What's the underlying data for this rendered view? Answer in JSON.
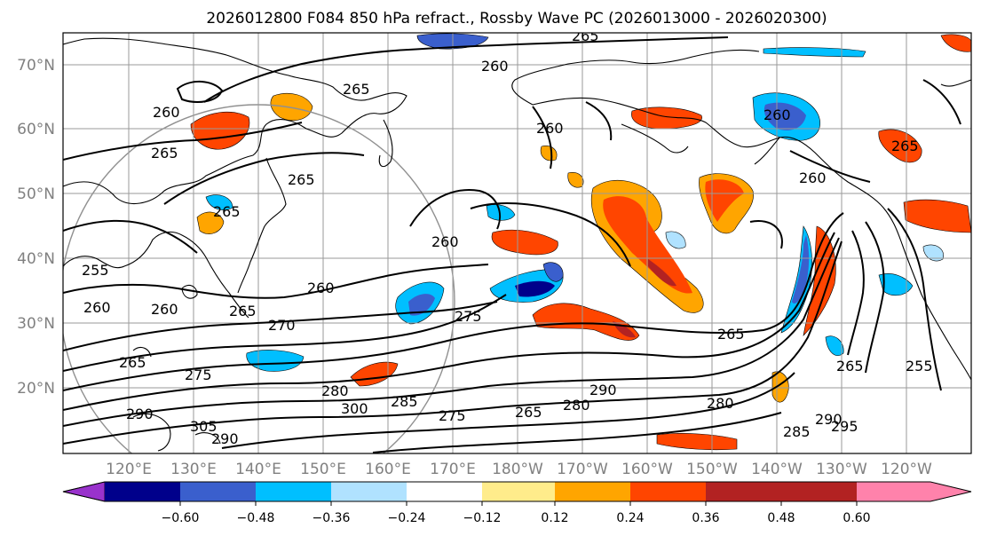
{
  "title": "2026012800 F084 850 hPa refract., Rossby Wave PC (2026013000 - 2026020300)",
  "lat_labels": [
    "70°N",
    "60°N",
    "50°N",
    "40°N",
    "30°N",
    "20°N"
  ],
  "lon_labels": [
    "120°E",
    "130°E",
    "140°E",
    "150°E",
    "160°E",
    "170°E",
    "180°W",
    "170°W",
    "160°W",
    "150°W",
    "140°W",
    "130°W",
    "120°W"
  ],
  "colorbar": {
    "colors": [
      "#9932CC",
      "#00008B",
      "#3A5FCD",
      "#00BFFF",
      "#B0E2FF",
      "#FFFFFF",
      "#FFEC8B",
      "#FFA500",
      "#FF4500",
      "#B22222",
      "#FF82AB"
    ],
    "tick_labels": [
      "−0.60",
      "−0.48",
      "−0.36",
      "−0.24",
      "−0.12",
      "0.12",
      "0.24",
      "0.36",
      "0.48",
      "0.60"
    ]
  },
  "contour_labels": [
    "265",
    "260",
    "265",
    "260",
    "265",
    "265",
    "260",
    "265",
    "260",
    "260",
    "255",
    "260",
    "260",
    "265",
    "270",
    "275",
    "265",
    "265",
    "275",
    "285",
    "280",
    "290",
    "275",
    "280",
    "265",
    "255",
    "265",
    "300",
    "285",
    "290",
    "280",
    "290",
    "295",
    "305",
    "290",
    "265",
    "260",
    "260"
  ],
  "colors": {
    "positive": "#FF4500",
    "negative": "#00BFFF"
  }
}
